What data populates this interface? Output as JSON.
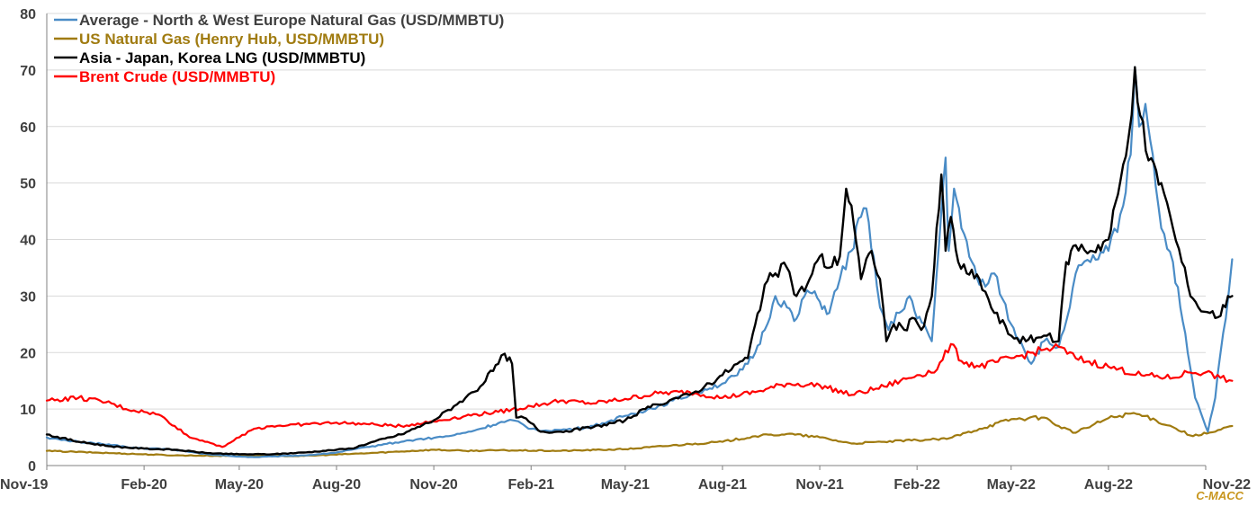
{
  "chart_data": {
    "type": "line",
    "title": "",
    "xlabel": "",
    "ylabel": "",
    "ylim": [
      0,
      80
    ],
    "y_ticks": [
      0,
      10,
      20,
      30,
      40,
      50,
      60,
      70,
      80
    ],
    "x_range_months": [
      "2019-11",
      "2022-11"
    ],
    "x_tick_labels": [
      "Nov-19",
      "Feb-20",
      "May-20",
      "Aug-20",
      "Nov-20",
      "Feb-21",
      "May-21",
      "Aug-21",
      "Nov-21",
      "Feb-22",
      "May-22",
      "Aug-22",
      "Nov-22"
    ],
    "grid": "horizontal",
    "legend_position": "top-left",
    "source_note": "C-MACC",
    "series": [
      {
        "name": "Average - North & West Europe Natural Gas (USD/MMBTU)",
        "color": "#4a8cc6",
        "points": [
          [
            "2019-11-01",
            5
          ],
          [
            "2019-11-15",
            4.5
          ],
          [
            "2019-12-01",
            4.2
          ],
          [
            "2019-12-15",
            4
          ],
          [
            "2020-01-01",
            3.6
          ],
          [
            "2020-01-15",
            3.3
          ],
          [
            "2020-02-01",
            3
          ],
          [
            "2020-02-15",
            3
          ],
          [
            "2020-03-01",
            2.8
          ],
          [
            "2020-03-15",
            2.4
          ],
          [
            "2020-04-01",
            2
          ],
          [
            "2020-04-15",
            1.8
          ],
          [
            "2020-05-01",
            1.6
          ],
          [
            "2020-05-15",
            1.5
          ],
          [
            "2020-06-01",
            1.6
          ],
          [
            "2020-06-15",
            1.7
          ],
          [
            "2020-07-01",
            1.8
          ],
          [
            "2020-07-15",
            2
          ],
          [
            "2020-08-01",
            2.3
          ],
          [
            "2020-08-15",
            2.8
          ],
          [
            "2020-09-01",
            3.3
          ],
          [
            "2020-09-15",
            3.8
          ],
          [
            "2020-10-01",
            4.2
          ],
          [
            "2020-10-15",
            4.6
          ],
          [
            "2020-11-01",
            4.9
          ],
          [
            "2020-11-15",
            5.2
          ],
          [
            "2020-12-01",
            5.8
          ],
          [
            "2020-12-15",
            6.5
          ],
          [
            "2021-01-01",
            7.5
          ],
          [
            "2021-01-15",
            8
          ],
          [
            "2021-02-01",
            6.5
          ],
          [
            "2021-02-15",
            6.2
          ],
          [
            "2021-03-01",
            6.3
          ],
          [
            "2021-03-15",
            6.5
          ],
          [
            "2021-04-01",
            7
          ],
          [
            "2021-04-15",
            7.8
          ],
          [
            "2021-05-01",
            8.8
          ],
          [
            "2021-05-15",
            9.5
          ],
          [
            "2021-06-01",
            10.5
          ],
          [
            "2021-06-15",
            11.5
          ],
          [
            "2021-07-01",
            12.5
          ],
          [
            "2021-07-15",
            13.5
          ],
          [
            "2021-08-01",
            14.5
          ],
          [
            "2021-08-15",
            16
          ],
          [
            "2021-08-25",
            18
          ],
          [
            "2021-09-01",
            20
          ],
          [
            "2021-09-10",
            24
          ],
          [
            "2021-09-20",
            30
          ],
          [
            "2021-10-01",
            28
          ],
          [
            "2021-10-10",
            26
          ],
          [
            "2021-10-20",
            31
          ],
          [
            "2021-11-01",
            29
          ],
          [
            "2021-11-10",
            27
          ],
          [
            "2021-11-20",
            33
          ],
          [
            "2021-12-01",
            38
          ],
          [
            "2021-12-10",
            44
          ],
          [
            "2021-12-15",
            45.5
          ],
          [
            "2021-12-22",
            37
          ],
          [
            "2021-12-28",
            28
          ],
          [
            "2022-01-05",
            24
          ],
          [
            "2022-01-15",
            27
          ],
          [
            "2022-01-25",
            30
          ],
          [
            "2022-02-01",
            26
          ],
          [
            "2022-02-10",
            24
          ],
          [
            "2022-02-15",
            22
          ],
          [
            "2022-02-24",
            45
          ],
          [
            "2022-02-28",
            54.5
          ],
          [
            "2022-03-03",
            38
          ],
          [
            "2022-03-08",
            49
          ],
          [
            "2022-03-15",
            42
          ],
          [
            "2022-03-25",
            36
          ],
          [
            "2022-04-01",
            32
          ],
          [
            "2022-04-15",
            34
          ],
          [
            "2022-05-01",
            25
          ],
          [
            "2022-05-10",
            22
          ],
          [
            "2022-05-20",
            18
          ],
          [
            "2022-06-01",
            22
          ],
          [
            "2022-06-15",
            21
          ],
          [
            "2022-06-20",
            24
          ],
          [
            "2022-07-01",
            34
          ],
          [
            "2022-07-15",
            36
          ],
          [
            "2022-08-01",
            38
          ],
          [
            "2022-08-15",
            46
          ],
          [
            "2022-08-22",
            55
          ],
          [
            "2022-08-26",
            70.5
          ],
          [
            "2022-08-30",
            60
          ],
          [
            "2022-09-05",
            64
          ],
          [
            "2022-09-12",
            55
          ],
          [
            "2022-09-20",
            42
          ],
          [
            "2022-10-01",
            36
          ],
          [
            "2022-10-08",
            28
          ],
          [
            "2022-10-15",
            20
          ],
          [
            "2022-10-22",
            12
          ],
          [
            "2022-10-30",
            8
          ],
          [
            "2022-11-03",
            6
          ],
          [
            "2022-11-10",
            12
          ],
          [
            "2022-11-15",
            20
          ],
          [
            "2022-11-20",
            26
          ],
          [
            "2022-11-26",
            36.5
          ]
        ]
      },
      {
        "name": "US Natural Gas (Henry Hub, USD/MMBTU)",
        "color": "#a07b10",
        "points": [
          [
            "2019-11-01",
            2.6
          ],
          [
            "2020-01-01",
            2.2
          ],
          [
            "2020-03-01",
            1.8
          ],
          [
            "2020-05-01",
            1.7
          ],
          [
            "2020-07-01",
            1.7
          ],
          [
            "2020-09-01",
            2.2
          ],
          [
            "2020-11-01",
            2.8
          ],
          [
            "2020-12-01",
            2.6
          ],
          [
            "2021-01-01",
            2.7
          ],
          [
            "2021-03-01",
            2.6
          ],
          [
            "2021-05-01",
            2.9
          ],
          [
            "2021-07-01",
            3.8
          ],
          [
            "2021-08-01",
            4.2
          ],
          [
            "2021-09-01",
            5.2
          ],
          [
            "2021-10-01",
            5.6
          ],
          [
            "2021-11-01",
            5
          ],
          [
            "2021-12-01",
            3.9
          ],
          [
            "2022-01-01",
            4.2
          ],
          [
            "2022-02-01",
            4.5
          ],
          [
            "2022-03-01",
            4.7
          ],
          [
            "2022-04-01",
            6.5
          ],
          [
            "2022-05-01",
            8.2
          ],
          [
            "2022-06-01",
            8.5
          ],
          [
            "2022-06-15",
            7
          ],
          [
            "2022-07-01",
            5.8
          ],
          [
            "2022-08-01",
            8.4
          ],
          [
            "2022-08-25",
            9.3
          ],
          [
            "2022-09-15",
            8
          ],
          [
            "2022-10-01",
            6.8
          ],
          [
            "2022-10-20",
            5.2
          ],
          [
            "2022-11-10",
            6
          ],
          [
            "2022-11-26",
            7
          ]
        ]
      },
      {
        "name": "Asia - Japan, Korea LNG (USD/MMBTU)",
        "color": "#000000",
        "points": [
          [
            "2019-11-01",
            5.5
          ],
          [
            "2019-12-01",
            4.2
          ],
          [
            "2020-01-01",
            3.4
          ],
          [
            "2020-02-01",
            3
          ],
          [
            "2020-03-01",
            2.8
          ],
          [
            "2020-04-01",
            2.2
          ],
          [
            "2020-05-01",
            2
          ],
          [
            "2020-06-01",
            2
          ],
          [
            "2020-07-01",
            2.3
          ],
          [
            "2020-08-01",
            2.8
          ],
          [
            "2020-08-15",
            3
          ],
          [
            "2020-09-01",
            4
          ],
          [
            "2020-10-01",
            5.5
          ],
          [
            "2020-11-01",
            8
          ],
          [
            "2020-11-20",
            10.5
          ],
          [
            "2020-12-01",
            12
          ],
          [
            "2020-12-15",
            14
          ],
          [
            "2021-01-01",
            18
          ],
          [
            "2021-01-07",
            19.8
          ],
          [
            "2021-01-14",
            18
          ],
          [
            "2021-01-18",
            8.5
          ],
          [
            "2021-01-25",
            8.5
          ],
          [
            "2021-02-01",
            7.5
          ],
          [
            "2021-02-10",
            6
          ],
          [
            "2021-03-01",
            6
          ],
          [
            "2021-04-01",
            6.8
          ],
          [
            "2021-05-01",
            8
          ],
          [
            "2021-05-20",
            10
          ],
          [
            "2021-06-01",
            10.8
          ],
          [
            "2021-06-15",
            11.8
          ],
          [
            "2021-07-01",
            12.5
          ],
          [
            "2021-07-15",
            14
          ],
          [
            "2021-08-01",
            16
          ],
          [
            "2021-08-15",
            18
          ],
          [
            "2021-08-25",
            19
          ],
          [
            "2021-09-01",
            25
          ],
          [
            "2021-09-10",
            32
          ],
          [
            "2021-09-20",
            34
          ],
          [
            "2021-10-01",
            35
          ],
          [
            "2021-10-10",
            30
          ],
          [
            "2021-10-20",
            32
          ],
          [
            "2021-11-01",
            37
          ],
          [
            "2021-11-10",
            35
          ],
          [
            "2021-11-20",
            37
          ],
          [
            "2021-11-26",
            49
          ],
          [
            "2021-12-01",
            46
          ],
          [
            "2021-12-10",
            33
          ],
          [
            "2021-12-20",
            38
          ],
          [
            "2021-12-28",
            33
          ],
          [
            "2022-01-03",
            22
          ],
          [
            "2022-01-10",
            25
          ],
          [
            "2022-01-20",
            24
          ],
          [
            "2022-01-30",
            26
          ],
          [
            "2022-02-05",
            24
          ],
          [
            "2022-02-15",
            30
          ],
          [
            "2022-02-24",
            51.5
          ],
          [
            "2022-02-28",
            38
          ],
          [
            "2022-03-05",
            44
          ],
          [
            "2022-03-12",
            36
          ],
          [
            "2022-03-20",
            34
          ],
          [
            "2022-04-01",
            33
          ],
          [
            "2022-04-15",
            27
          ],
          [
            "2022-05-01",
            23
          ],
          [
            "2022-05-15",
            22
          ],
          [
            "2022-06-01",
            23
          ],
          [
            "2022-06-15",
            22
          ],
          [
            "2022-06-22",
            36
          ],
          [
            "2022-07-01",
            39
          ],
          [
            "2022-07-15",
            38
          ],
          [
            "2022-08-01",
            40
          ],
          [
            "2022-08-10",
            48
          ],
          [
            "2022-08-20",
            58
          ],
          [
            "2022-08-26",
            70.5
          ],
          [
            "2022-08-31",
            62
          ],
          [
            "2022-09-08",
            54
          ],
          [
            "2022-09-20",
            50
          ],
          [
            "2022-10-01",
            42
          ],
          [
            "2022-10-15",
            32
          ],
          [
            "2022-10-25",
            28
          ],
          [
            "2022-11-05",
            27
          ],
          [
            "2022-11-15",
            26.5
          ],
          [
            "2022-11-22",
            30
          ],
          [
            "2022-11-26",
            30
          ]
        ]
      },
      {
        "name": "Brent Crude (USD/MMBTU)",
        "color": "#ff0000",
        "points": [
          [
            "2019-11-01",
            11.5
          ],
          [
            "2019-12-01",
            12
          ],
          [
            "2020-01-01",
            11
          ],
          [
            "2020-01-15",
            10
          ],
          [
            "2020-02-01",
            9.5
          ],
          [
            "2020-02-15",
            9
          ],
          [
            "2020-03-01",
            7
          ],
          [
            "2020-03-15",
            5
          ],
          [
            "2020-04-01",
            4.2
          ],
          [
            "2020-04-15",
            3.3
          ],
          [
            "2020-05-01",
            5
          ],
          [
            "2020-05-15",
            6.5
          ],
          [
            "2020-06-01",
            7
          ],
          [
            "2020-07-01",
            7.3
          ],
          [
            "2020-08-01",
            7.6
          ],
          [
            "2020-09-01",
            7.3
          ],
          [
            "2020-10-01",
            7
          ],
          [
            "2020-11-01",
            7.8
          ],
          [
            "2020-12-01",
            8.8
          ],
          [
            "2021-01-01",
            9.5
          ],
          [
            "2021-02-01",
            10.5
          ],
          [
            "2021-03-01",
            11.5
          ],
          [
            "2021-04-01",
            11
          ],
          [
            "2021-05-01",
            11.8
          ],
          [
            "2021-06-01",
            12.8
          ],
          [
            "2021-07-01",
            13
          ],
          [
            "2021-08-01",
            12
          ],
          [
            "2021-09-01",
            13
          ],
          [
            "2021-10-01",
            14.5
          ],
          [
            "2021-11-01",
            14.2
          ],
          [
            "2021-12-01",
            12.5
          ],
          [
            "2022-01-01",
            14
          ],
          [
            "2022-02-01",
            16
          ],
          [
            "2022-02-20",
            17
          ],
          [
            "2022-03-05",
            21.5
          ],
          [
            "2022-03-15",
            18.5
          ],
          [
            "2022-04-01",
            17.5
          ],
          [
            "2022-05-01",
            19
          ],
          [
            "2022-06-01",
            20.5
          ],
          [
            "2022-06-15",
            21
          ],
          [
            "2022-07-01",
            19
          ],
          [
            "2022-08-01",
            17.5
          ],
          [
            "2022-09-01",
            16
          ],
          [
            "2022-10-01",
            15.5
          ],
          [
            "2022-10-15",
            16.5
          ],
          [
            "2022-11-01",
            16.5
          ],
          [
            "2022-11-15",
            15.5
          ],
          [
            "2022-11-26",
            15
          ]
        ]
      }
    ]
  }
}
